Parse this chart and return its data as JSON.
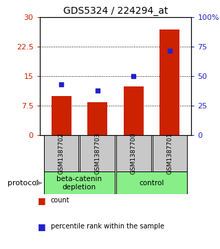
{
  "title": "GDS5324 / 224294_at",
  "samples": [
    "GSM1387702",
    "GSM1387703",
    "GSM1387700",
    "GSM1387701"
  ],
  "counts": [
    10.0,
    8.5,
    12.5,
    27.0
  ],
  "percentiles": [
    43,
    38,
    50,
    72
  ],
  "ylim_left": [
    0,
    30
  ],
  "ylim_right": [
    0,
    100
  ],
  "yticks_left": [
    0,
    7.5,
    15,
    22.5,
    30
  ],
  "ytick_labels_left": [
    "0",
    "7.5",
    "15",
    "22.5",
    "30"
  ],
  "yticks_right": [
    0,
    25,
    50,
    75,
    100
  ],
  "ytick_labels_right": [
    "0",
    "25",
    "50",
    "75",
    "100%"
  ],
  "bar_color": "#cc2200",
  "point_color": "#2222cc",
  "bar_width": 0.55,
  "groups": [
    {
      "label": "beta-catenin\ndepletion",
      "indices": [
        0,
        1
      ],
      "color": "#88ee88"
    },
    {
      "label": "control",
      "indices": [
        2,
        3
      ],
      "color": "#88ee88"
    }
  ],
  "protocol_label": "protocol",
  "legend_count": "count",
  "legend_percentile": "percentile rank within the sample",
  "bg_color": "#c8c8c8",
  "plot_bg": "#ffffff"
}
